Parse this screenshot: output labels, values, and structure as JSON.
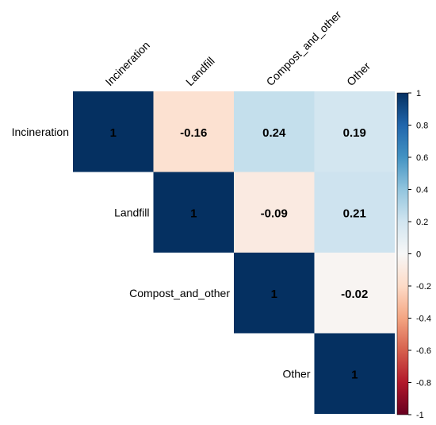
{
  "chart_data": {
    "type": "heatmap",
    "subtype": "correlation-upper-triangle",
    "variables": [
      "Incineration",
      "Landfill",
      "Compost_and_other",
      "Other"
    ],
    "matrix": [
      [
        1,
        -0.16,
        0.24,
        0.19
      ],
      [
        null,
        1,
        -0.09,
        0.21
      ],
      [
        null,
        null,
        1,
        -0.02
      ],
      [
        null,
        null,
        null,
        1
      ]
    ],
    "value_labels": [
      [
        "1",
        "-0.16",
        "0.24",
        "0.19"
      ],
      [
        "",
        "1",
        "-0.09",
        "0.21"
      ],
      [
        "",
        "",
        "1",
        "-0.02"
      ],
      [
        "",
        "",
        "",
        "1"
      ]
    ],
    "colorbar": {
      "range": [
        -1,
        1
      ],
      "tick_values": [
        1,
        0.8,
        0.6,
        0.4,
        0.2,
        0,
        -0.2,
        -0.4,
        -0.6,
        -0.8,
        -1
      ],
      "tick_labels": [
        "1",
        "0.8",
        "0.6",
        "0.4",
        "0.2",
        "0",
        "-0.2",
        "-0.4",
        "-0.6",
        "-0.8",
        "-1"
      ],
      "placement": "right"
    },
    "colors": {
      "low": "#67001F",
      "mid": "#F7F7F7",
      "high": "#053061",
      "gradient_stops": [
        "#053061",
        "#2166AC",
        "#4393C3",
        "#92C5DE",
        "#D1E5F0",
        "#F7F7F7",
        "#FDDBC7",
        "#F4A582",
        "#D6604D",
        "#B2182B",
        "#67001F"
      ]
    }
  }
}
